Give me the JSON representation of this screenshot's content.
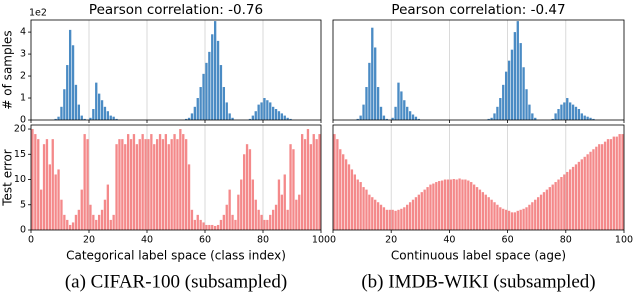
{
  "chart_data": [
    {
      "type": "bar",
      "title": "Pearson correlation: -0.76",
      "y_label": "# of samples",
      "offset_label": "1e2",
      "color": "#4a8bc4",
      "xlim": [
        0,
        100
      ],
      "xticks": [
        0,
        20,
        40,
        60,
        80,
        100
      ],
      "xtick_labels": false,
      "ylim": [
        0,
        4.55
      ],
      "yticks": [
        0,
        1,
        2,
        3,
        4
      ],
      "grid": true,
      "values": [
        0,
        0,
        0,
        0,
        0,
        0,
        0,
        0,
        0.05,
        0.15,
        0.6,
        1.4,
        2.5,
        4.1,
        3.4,
        1.6,
        0.7,
        0.2,
        0.05,
        0,
        0.1,
        0.5,
        1.7,
        1.2,
        0.9,
        0.6,
        0.4,
        0.2,
        0.15,
        0.05,
        0,
        0,
        0,
        0,
        0,
        0,
        0,
        0,
        0,
        0,
        0,
        0,
        0,
        0,
        0,
        0,
        0,
        0,
        0,
        0,
        0,
        0,
        0,
        0.05,
        0.1,
        0.3,
        0.6,
        1.0,
        1.5,
        2.1,
        2.6,
        3.1,
        3.9,
        4.5,
        3.6,
        2.5,
        1.5,
        0.8,
        0.3,
        0.1,
        0,
        0,
        0,
        0,
        0,
        0.05,
        0.2,
        0.4,
        0.7,
        0.8,
        1.0,
        0.9,
        0.8,
        0.6,
        0.5,
        0.4,
        0.3,
        0.2,
        0.1,
        0.05,
        0,
        0,
        0,
        0,
        0,
        0,
        0,
        0,
        0,
        0
      ]
    },
    {
      "type": "bar",
      "title": "Pearson correlation: -0.47",
      "color": "#4a8bc4",
      "xlim": [
        0,
        100
      ],
      "xticks": [
        0,
        20,
        40,
        60,
        80,
        100
      ],
      "xtick_labels": false,
      "ylim": [
        0,
        4.55
      ],
      "grid": true,
      "values": [
        0,
        0,
        0,
        0,
        0,
        0,
        0,
        0,
        0.05,
        0.2,
        0.7,
        1.5,
        2.6,
        4.2,
        3.3,
        1.5,
        0.6,
        0.2,
        0.05,
        0,
        0.1,
        0.6,
        1.7,
        1.3,
        0.9,
        0.6,
        0.4,
        0.25,
        0.15,
        0.05,
        0,
        0,
        0,
        0,
        0,
        0,
        0,
        0,
        0,
        0,
        0,
        0,
        0,
        0,
        0,
        0,
        0,
        0,
        0,
        0,
        0,
        0,
        0,
        0.05,
        0.1,
        0.3,
        0.6,
        1.0,
        1.6,
        2.2,
        2.7,
        3.2,
        4.0,
        4.5,
        3.5,
        2.4,
        1.4,
        0.7,
        0.3,
        0.1,
        0,
        0,
        0,
        0,
        0,
        0.05,
        0.3,
        0.5,
        0.7,
        0.8,
        1.0,
        0.8,
        0.7,
        0.6,
        0.5,
        0.3,
        0.2,
        0.15,
        0.1,
        0.05,
        0,
        0,
        0,
        0,
        0,
        0,
        0,
        0,
        0,
        0
      ]
    },
    {
      "type": "bar",
      "y_label": "Test error",
      "x_label": "Categorical label space (class index)",
      "caption": "(a)  CIFAR-100 (subsampled)",
      "color": "#f4898a",
      "xlim": [
        0,
        100
      ],
      "xticks": [
        0,
        20,
        40,
        60,
        80,
        100
      ],
      "xtick_labels": true,
      "ylim": [
        0,
        20.8
      ],
      "yticks": [
        0,
        5,
        10,
        15,
        20
      ],
      "grid": true,
      "values": [
        20,
        19,
        18,
        8,
        17,
        18,
        13,
        18,
        11,
        12,
        6,
        3,
        2,
        1,
        1.5,
        3,
        4,
        8,
        19,
        18,
        5,
        3,
        2,
        3,
        4,
        6,
        9,
        2,
        3,
        17,
        18,
        18,
        17,
        19,
        18,
        19,
        17,
        18,
        19,
        18,
        18,
        19,
        17,
        18,
        19,
        18,
        19,
        17,
        18,
        19,
        18,
        20,
        19,
        18,
        13,
        4,
        2,
        3,
        2,
        1.5,
        1,
        1,
        1,
        0.8,
        1,
        2,
        3,
        5,
        8,
        3,
        2,
        7,
        10,
        15,
        17,
        16,
        10,
        6,
        4,
        3,
        2,
        2,
        3,
        4,
        5,
        10,
        7,
        11,
        4,
        17,
        16,
        6,
        7,
        19,
        18,
        20,
        17,
        19,
        18,
        19
      ]
    },
    {
      "type": "bar",
      "x_label": "Continuous label space (age)",
      "caption": "(b)  IMDB-WIKI (subsampled)",
      "color": "#f4898a",
      "xlim": [
        0,
        100
      ],
      "xticks": [
        0,
        20,
        40,
        60,
        80,
        100
      ],
      "xtick_labels": true,
      "ylim": [
        0,
        20.8
      ],
      "grid": true,
      "values": [
        19,
        18,
        16,
        15,
        14,
        13,
        12,
        11,
        10,
        9.5,
        8.5,
        8,
        7,
        6.5,
        6,
        5.5,
        5,
        4.5,
        4,
        4,
        4,
        3.8,
        4,
        4.2,
        4.5,
        5,
        5.5,
        6,
        6.5,
        7,
        7.5,
        8,
        8.5,
        9,
        9.2,
        9.5,
        9.7,
        9.8,
        10,
        10,
        10,
        10.1,
        10,
        10.2,
        10,
        10,
        9.8,
        9.5,
        9,
        8.5,
        8,
        7.5,
        7,
        6.5,
        6,
        5.5,
        5,
        4.5,
        4.2,
        4,
        3.8,
        3.5,
        3.5,
        3.8,
        4,
        4.2,
        4.5,
        5,
        5.5,
        6,
        6.5,
        7,
        7.5,
        8,
        8.5,
        9,
        9.5,
        10,
        10.5,
        11,
        11.5,
        12,
        12.5,
        13,
        13.5,
        14,
        14.5,
        15,
        15.5,
        16,
        16.5,
        17,
        17,
        17.5,
        18,
        18,
        18.5,
        18.5,
        19,
        19
      ]
    }
  ]
}
